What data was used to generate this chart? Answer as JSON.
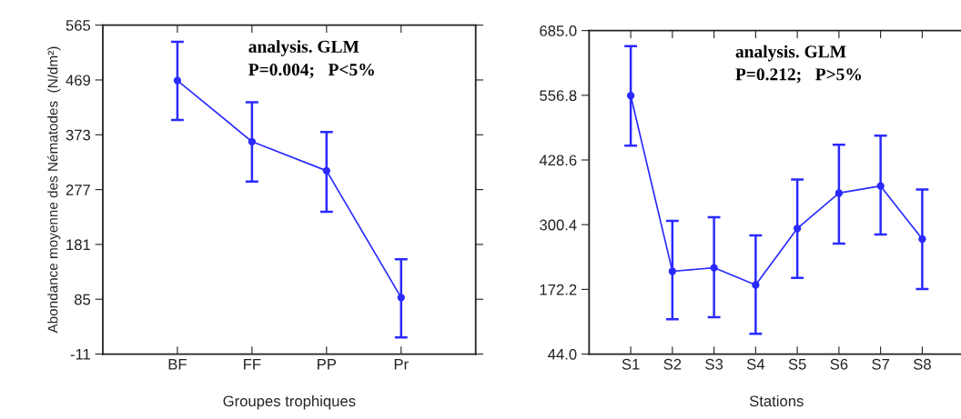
{
  "chart_data": [
    {
      "type": "line",
      "xlabel": "Groupes trophiques",
      "ylabel": "Abondance moyenne des Nématodes  (N/dm²)",
      "annotations": [
        "analysis. GLM",
        "P=0.004;   P<5%"
      ],
      "categories": [
        "BF",
        "FF",
        "PP",
        "Pr"
      ],
      "series": [
        {
          "color": "#2a2aff",
          "values": [
            468,
            361,
            310,
            88
          ],
          "errors": [
            [
              399,
              536
            ],
            [
              291,
              430
            ],
            [
              238,
              378
            ],
            [
              18,
              155
            ]
          ]
        }
      ],
      "ylim": [
        -11,
        565
      ],
      "yticks": [
        -11,
        85,
        181,
        277,
        373,
        469,
        565
      ],
      "grid": false,
      "legend": false,
      "marker": "circle",
      "line_style": "solid"
    },
    {
      "type": "line",
      "xlabel": "Stations",
      "annotations": [
        "analysis. GLM",
        "P=0.212;   P>5%"
      ],
      "categories": [
        "S1",
        "S2",
        "S3",
        "S4",
        "S5",
        "S6",
        "S7",
        "S8"
      ],
      "series": [
        {
          "color": "#2a2aff",
          "values": [
            556,
            208,
            215,
            181,
            293,
            363,
            377,
            272
          ],
          "errors": [
            [
              457,
              654
            ],
            [
              113,
              308
            ],
            [
              117,
              315
            ],
            [
              84,
              279
            ],
            [
              195,
              390
            ],
            [
              263,
              459
            ],
            [
              281,
              477
            ],
            [
              173,
              370
            ]
          ]
        }
      ],
      "ylim": [
        44,
        685
      ],
      "yticks": [
        {
          "value": 44,
          "label": "44.0"
        },
        {
          "value": 172.2,
          "label": "172.2"
        },
        {
          "value": 300.4,
          "label": "300.4"
        },
        {
          "value": 428.6,
          "label": "428.6"
        },
        {
          "value": 556.8,
          "label": "556.8"
        },
        {
          "value": 685,
          "label": "685.0"
        }
      ],
      "grid": false,
      "legend": false,
      "marker": "circle",
      "line_style": "solid"
    }
  ]
}
